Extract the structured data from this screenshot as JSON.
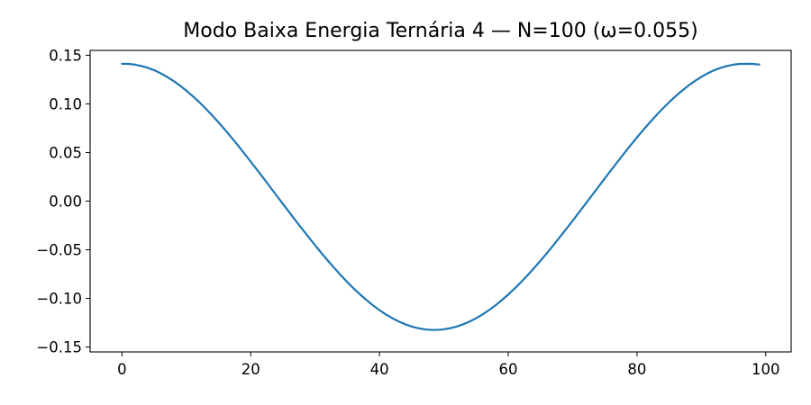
{
  "chart_data": {
    "type": "line",
    "title": "Modo Baixa Energia Ternária 4 — N=100 (ω=0.055)",
    "xlabel": "",
    "ylabel": "",
    "xlim": [
      -4.95,
      103.95
    ],
    "ylim": [
      -0.155,
      0.155
    ],
    "grid": false,
    "xticks": [
      0,
      20,
      40,
      60,
      80,
      100
    ],
    "xtick_labels": [
      "0",
      "20",
      "40",
      "60",
      "80",
      "100"
    ],
    "yticks": [
      -0.15,
      -0.1,
      -0.05,
      0.0,
      0.05,
      0.1,
      0.15
    ],
    "ytick_labels": [
      "−0.15",
      "−0.10",
      "−0.05",
      "0.00",
      "0.05",
      "0.10",
      "0.15"
    ],
    "series": [
      {
        "color": "#1f77b4",
        "x": [
          0,
          1,
          2,
          3,
          4,
          5,
          6,
          7,
          8,
          9,
          10,
          11,
          12,
          13,
          14,
          15,
          16,
          17,
          18,
          19,
          20,
          21,
          22,
          23,
          24,
          25,
          26,
          27,
          28,
          29,
          30,
          31,
          32,
          33,
          34,
          35,
          36,
          37,
          38,
          39,
          40,
          41,
          42,
          43,
          44,
          45,
          46,
          47,
          48,
          49,
          50,
          51,
          52,
          53,
          54,
          55,
          56,
          57,
          58,
          59,
          60,
          61,
          62,
          63,
          64,
          65,
          66,
          67,
          68,
          69,
          70,
          71,
          72,
          73,
          74,
          75,
          76,
          77,
          78,
          79,
          80,
          81,
          82,
          83,
          84,
          85,
          86,
          87,
          88,
          89,
          90,
          91,
          92,
          93,
          94,
          95,
          96,
          97,
          98,
          99
        ],
        "y": [
          0.1412,
          0.1411,
          0.1404,
          0.139,
          0.1371,
          0.1346,
          0.1315,
          0.1278,
          0.1236,
          0.1189,
          0.1136,
          0.1079,
          0.1018,
          0.0952,
          0.0883,
          0.081,
          0.0734,
          0.0655,
          0.0574,
          0.0491,
          0.0406,
          0.0321,
          0.0234,
          0.0147,
          0.0059,
          -0.0028,
          -0.0115,
          -0.0202,
          -0.0287,
          -0.0371,
          -0.0454,
          -0.0535,
          -0.0613,
          -0.0689,
          -0.0762,
          -0.0832,
          -0.0898,
          -0.096,
          -0.1018,
          -0.1072,
          -0.1121,
          -0.1165,
          -0.1204,
          -0.1238,
          -0.1266,
          -0.1289,
          -0.1306,
          -0.1318,
          -0.1324,
          -0.1324,
          -0.1318,
          -0.1306,
          -0.1289,
          -0.1266,
          -0.1238,
          -0.1204,
          -0.1165,
          -0.1121,
          -0.1072,
          -0.1018,
          -0.096,
          -0.0898,
          -0.0832,
          -0.0762,
          -0.0689,
          -0.0613,
          -0.0535,
          -0.0454,
          -0.0371,
          -0.0287,
          -0.0202,
          -0.0115,
          -0.0028,
          0.0059,
          0.0147,
          0.0234,
          0.0321,
          0.0406,
          0.0491,
          0.0574,
          0.0655,
          0.0734,
          0.081,
          0.0883,
          0.0952,
          0.1018,
          0.1079,
          0.1136,
          0.1189,
          0.1236,
          0.1278,
          0.1315,
          0.1346,
          0.1371,
          0.139,
          0.1404,
          0.1411,
          0.1412,
          0.1411,
          0.1404
        ]
      }
    ]
  }
}
